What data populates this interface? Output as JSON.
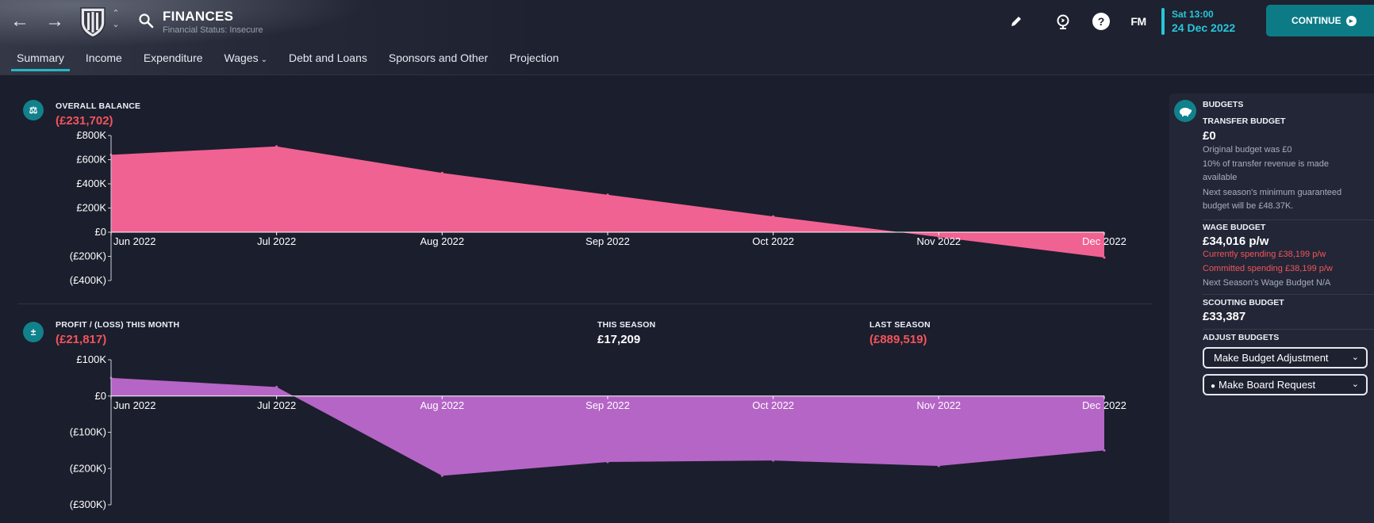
{
  "header": {
    "title": "FINANCES",
    "subtitle": "Financial Status: Insecure",
    "date_time": "Sat 13:00",
    "date_day": "24 Dec 2022",
    "continue_label": "CONTINUE",
    "fm_label": "FM",
    "help_label": "?"
  },
  "tabs": [
    {
      "label": "Summary",
      "active": true
    },
    {
      "label": "Income"
    },
    {
      "label": "Expenditure"
    },
    {
      "label": "Wages",
      "dropdown": true
    },
    {
      "label": "Debt and Loans"
    },
    {
      "label": "Sponsors and Other"
    },
    {
      "label": "Projection"
    }
  ],
  "balance": {
    "label": "OVERALL BALANCE",
    "value": "(£231,702)"
  },
  "profit": {
    "label": "PROFIT / (LOSS) THIS MONTH",
    "value": "(£21,817)",
    "this_season_label": "THIS SEASON",
    "this_season_value": "£17,209",
    "last_season_label": "LAST SEASON",
    "last_season_value": "(£889,519)"
  },
  "chart_data": [
    {
      "type": "area",
      "categories": [
        "Jun 2022",
        "Jul 2022",
        "Aug 2022",
        "Sep 2022",
        "Oct 2022",
        "Nov 2022",
        "Dec 2022"
      ],
      "values": [
        640000,
        710000,
        490000,
        310000,
        130000,
        -40000,
        -210000
      ],
      "yticks": [
        "£800K",
        "£600K",
        "£400K",
        "£200K",
        "£0",
        "(£200K)",
        "(£400K)"
      ],
      "ylim": [
        -400000,
        800000
      ],
      "color": "#f06292"
    },
    {
      "type": "area",
      "categories": [
        "Jun 2022",
        "Jul 2022",
        "Aug 2022",
        "Sep 2022",
        "Oct 2022",
        "Nov 2022",
        "Dec 2022"
      ],
      "values": [
        50000,
        25000,
        -220000,
        -182000,
        -178000,
        -193000,
        -150000
      ],
      "yticks": [
        "£100K",
        "£0",
        "(£100K)",
        "(£200K)",
        "(£300K)"
      ],
      "ylim": [
        -300000,
        100000
      ],
      "color": "#b565c6"
    }
  ],
  "budgets": {
    "title": "BUDGETS",
    "transfer_label": "TRANSFER BUDGET",
    "transfer_value": "£0",
    "transfer_note1": "Original budget was £0",
    "transfer_note2": "10% of transfer revenue is made available",
    "transfer_note3": "Next season's minimum guaranteed budget will be £48.37K.",
    "wage_label": "WAGE BUDGET",
    "wage_value": "£34,016 p/w",
    "wage_current": "Currently spending £38,199 p/w",
    "wage_committed": "Committed spending £38,199 p/w",
    "wage_next": "Next Season's Wage Budget N/A",
    "scouting_label": "SCOUTING BUDGET",
    "scouting_value": "£33,387",
    "adjust_label": "ADJUST BUDGETS",
    "adjust_button": "Make Budget Adjustment",
    "board_button": "Make Board Request"
  }
}
